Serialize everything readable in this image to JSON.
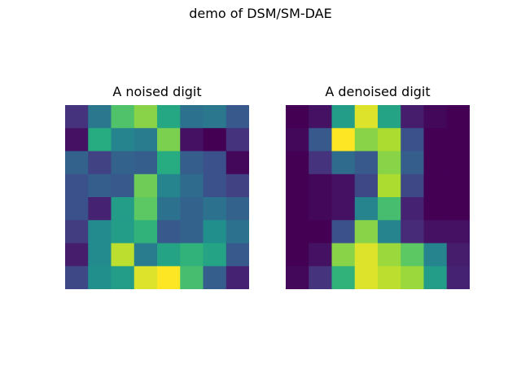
{
  "figure": {
    "suptitle": "demo of DSM/SM-DAE"
  },
  "chart_data": [
    {
      "type": "heatmap",
      "title": "A noised digit",
      "xlabel": "",
      "ylabel": "",
      "colormap": "viridis",
      "axes": "off",
      "grid": false,
      "range": [
        0.0,
        1.0
      ],
      "values": [
        [
          0.15,
          0.4,
          0.72,
          0.82,
          0.6,
          0.38,
          0.4,
          0.28
        ],
        [
          0.05,
          0.62,
          0.45,
          0.42,
          0.8,
          0.05,
          0.0,
          0.15
        ],
        [
          0.32,
          0.2,
          0.32,
          0.3,
          0.62,
          0.3,
          0.25,
          0.02
        ],
        [
          0.25,
          0.3,
          0.28,
          0.78,
          0.45,
          0.35,
          0.25,
          0.2
        ],
        [
          0.25,
          0.1,
          0.55,
          0.75,
          0.38,
          0.32,
          0.38,
          0.32
        ],
        [
          0.18,
          0.48,
          0.55,
          0.65,
          0.28,
          0.32,
          0.5,
          0.38
        ],
        [
          0.08,
          0.48,
          0.9,
          0.42,
          0.58,
          0.65,
          0.58,
          0.28
        ],
        [
          0.22,
          0.5,
          0.55,
          0.95,
          1.0,
          0.7,
          0.3,
          0.1
        ]
      ]
    },
    {
      "type": "heatmap",
      "title": "A denoised digit",
      "xlabel": "",
      "ylabel": "",
      "colormap": "viridis",
      "axes": "off",
      "grid": false,
      "range": [
        0.0,
        1.0
      ],
      "values": [
        [
          0.0,
          0.05,
          0.55,
          0.95,
          0.58,
          0.08,
          0.02,
          0.0
        ],
        [
          0.02,
          0.28,
          1.0,
          0.82,
          0.88,
          0.25,
          0.0,
          0.0
        ],
        [
          0.0,
          0.15,
          0.35,
          0.28,
          0.82,
          0.3,
          0.0,
          0.0
        ],
        [
          0.0,
          0.02,
          0.05,
          0.22,
          0.88,
          0.22,
          0.0,
          0.0
        ],
        [
          0.0,
          0.02,
          0.05,
          0.45,
          0.7,
          0.1,
          0.0,
          0.0
        ],
        [
          0.0,
          0.0,
          0.25,
          0.82,
          0.45,
          0.12,
          0.05,
          0.05
        ],
        [
          0.0,
          0.05,
          0.82,
          0.95,
          0.85,
          0.75,
          0.45,
          0.08
        ],
        [
          0.02,
          0.15,
          0.65,
          0.95,
          0.9,
          0.85,
          0.55,
          0.1
        ]
      ]
    }
  ]
}
